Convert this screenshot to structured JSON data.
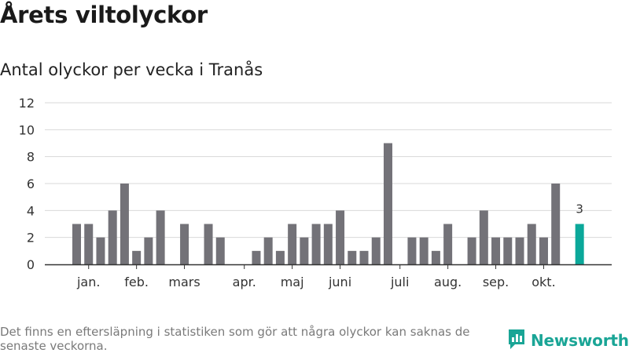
{
  "title": "Årets viltolyckor",
  "subtitle": "Antal olyckor per vecka i Tranås",
  "footnote": "Det finns en eftersläpning i statistiken som gör att några olyckor kan saknas de senaste veckorna.",
  "brand": {
    "name": "Newsworthy",
    "color": "#1aa596",
    "icon": "bar-chart-pin-icon"
  },
  "colors": {
    "bar": "#737278",
    "highlight": "#0ba89a",
    "grid": "#d8d8d8",
    "axis": "#333333"
  },
  "chart_data": {
    "type": "bar",
    "title": "Antal olyckor per vecka i Tranås",
    "xlabel": "",
    "ylabel": "",
    "ylim": [
      0,
      12
    ],
    "yticks": [
      0,
      2,
      4,
      6,
      8,
      10,
      12
    ],
    "grid": true,
    "weeks": [
      1,
      2,
      3,
      4,
      5,
      6,
      7,
      8,
      9,
      10,
      11,
      12,
      13,
      14,
      15,
      16,
      17,
      18,
      19,
      20,
      21,
      22,
      23,
      24,
      25,
      26,
      27,
      28,
      29,
      30,
      31,
      32,
      33,
      34,
      35,
      36,
      37,
      38,
      39,
      40,
      41,
      42,
      43
    ],
    "values": [
      3,
      3,
      2,
      4,
      6,
      1,
      2,
      4,
      0,
      3,
      0,
      3,
      2,
      0,
      0,
      1,
      2,
      1,
      3,
      2,
      3,
      3,
      4,
      1,
      1,
      2,
      9,
      0,
      2,
      2,
      1,
      3,
      0,
      2,
      4,
      2,
      2,
      2,
      3,
      2,
      6,
      0,
      3
    ],
    "highlight_week": 43,
    "data_labels": [
      {
        "week": 43,
        "text": "3"
      }
    ],
    "month_labels": [
      {
        "label": "jan.",
        "week": 2
      },
      {
        "label": "feb.",
        "week": 6
      },
      {
        "label": "mars",
        "week": 10
      },
      {
        "label": "apr.",
        "week": 15
      },
      {
        "label": "maj",
        "week": 19
      },
      {
        "label": "juni",
        "week": 23
      },
      {
        "label": "juli",
        "week": 28
      },
      {
        "label": "aug.",
        "week": 32
      },
      {
        "label": "sep.",
        "week": 36
      },
      {
        "label": "okt.",
        "week": 40
      }
    ]
  }
}
